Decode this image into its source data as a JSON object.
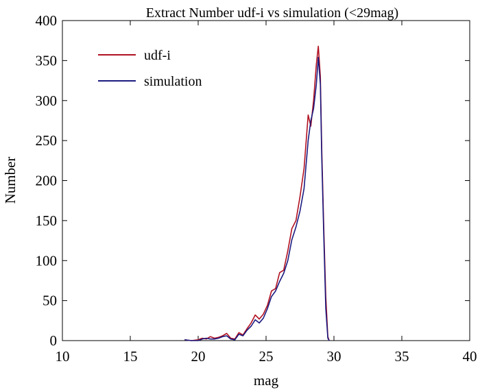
{
  "chart_data": {
    "type": "line",
    "title": "Extract Number udf-i vs simulation (<29mag)",
    "xlabel": "mag",
    "ylabel": "Number",
    "xlim": [
      10,
      40
    ],
    "ylim": [
      0,
      400
    ],
    "xticks": [
      10,
      15,
      20,
      25,
      30,
      35,
      40
    ],
    "yticks": [
      0,
      50,
      100,
      150,
      200,
      250,
      300,
      350,
      400
    ],
    "legend_position": "top-left",
    "series": [
      {
        "name": "udf-i",
        "color": "#b01020",
        "points": [
          [
            19.0,
            1
          ],
          [
            19.5,
            0
          ],
          [
            20.0,
            1
          ],
          [
            20.3,
            3
          ],
          [
            20.6,
            2
          ],
          [
            20.9,
            5
          ],
          [
            21.2,
            3
          ],
          [
            21.5,
            4
          ],
          [
            21.8,
            6
          ],
          [
            22.1,
            9
          ],
          [
            22.4,
            3
          ],
          [
            22.7,
            2
          ],
          [
            23.0,
            10
          ],
          [
            23.3,
            7
          ],
          [
            23.6,
            15
          ],
          [
            23.9,
            22
          ],
          [
            24.2,
            32
          ],
          [
            24.5,
            27
          ],
          [
            24.8,
            33
          ],
          [
            25.1,
            44
          ],
          [
            25.4,
            62
          ],
          [
            25.7,
            65
          ],
          [
            26.0,
            85
          ],
          [
            26.3,
            88
          ],
          [
            26.6,
            112
          ],
          [
            26.9,
            140
          ],
          [
            27.2,
            150
          ],
          [
            27.5,
            180
          ],
          [
            27.8,
            215
          ],
          [
            28.1,
            282
          ],
          [
            28.3,
            268
          ],
          [
            28.5,
            300
          ],
          [
            28.7,
            345
          ],
          [
            28.85,
            368
          ],
          [
            29.0,
            330
          ],
          [
            29.1,
            240
          ],
          [
            29.25,
            140
          ],
          [
            29.4,
            55
          ],
          [
            29.55,
            5
          ],
          [
            29.65,
            0
          ]
        ]
      },
      {
        "name": "simulation",
        "color": "#1a1a80",
        "points": [
          [
            19.0,
            1
          ],
          [
            19.5,
            0
          ],
          [
            20.0,
            0
          ],
          [
            20.3,
            2
          ],
          [
            20.6,
            3
          ],
          [
            20.9,
            2
          ],
          [
            21.2,
            2
          ],
          [
            21.5,
            3
          ],
          [
            21.8,
            5
          ],
          [
            22.1,
            6
          ],
          [
            22.4,
            2
          ],
          [
            22.7,
            1
          ],
          [
            23.0,
            8
          ],
          [
            23.3,
            6
          ],
          [
            23.6,
            13
          ],
          [
            23.9,
            18
          ],
          [
            24.2,
            26
          ],
          [
            24.5,
            22
          ],
          [
            24.8,
            28
          ],
          [
            25.1,
            40
          ],
          [
            25.4,
            55
          ],
          [
            25.7,
            62
          ],
          [
            26.0,
            74
          ],
          [
            26.3,
            84
          ],
          [
            26.6,
            100
          ],
          [
            26.9,
            126
          ],
          [
            27.2,
            142
          ],
          [
            27.5,
            162
          ],
          [
            27.8,
            190
          ],
          [
            28.1,
            250
          ],
          [
            28.3,
            275
          ],
          [
            28.5,
            290
          ],
          [
            28.7,
            320
          ],
          [
            28.85,
            354
          ],
          [
            29.0,
            320
          ],
          [
            29.1,
            230
          ],
          [
            29.25,
            130
          ],
          [
            29.4,
            40
          ],
          [
            29.55,
            3
          ],
          [
            29.65,
            0
          ]
        ]
      }
    ]
  }
}
